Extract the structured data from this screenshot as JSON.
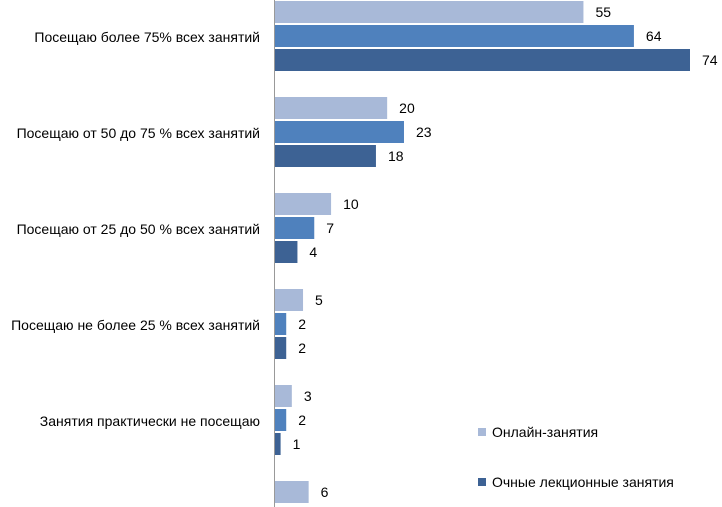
{
  "chart_data": {
    "type": "bar",
    "orientation": "horizontal",
    "categories": [
      "Посещаю более 75% всех занятий",
      "Посещаю от 50 до 75 % всех занятий",
      "Посещаю от 25 до 50 % всех занятий",
      "Посещаю не более 25 % всех занятий",
      "Занятия практически не посещаю",
      ""
    ],
    "series": [
      {
        "name": "Онлайн-занятия",
        "color": "#a8b9d8",
        "values": [
          55,
          20,
          10,
          5,
          3,
          6
        ]
      },
      {
        "name": "",
        "color": "#4f81bd",
        "values": [
          64,
          23,
          7,
          2,
          2,
          null
        ]
      },
      {
        "name": "Очные лекционные занятия",
        "color": "#3d6294",
        "values": [
          74,
          18,
          4,
          2,
          1,
          null
        ]
      }
    ],
    "xlim": [
      0,
      78
    ],
    "grid": false,
    "legend": "bottom-right",
    "data_labels": true
  }
}
